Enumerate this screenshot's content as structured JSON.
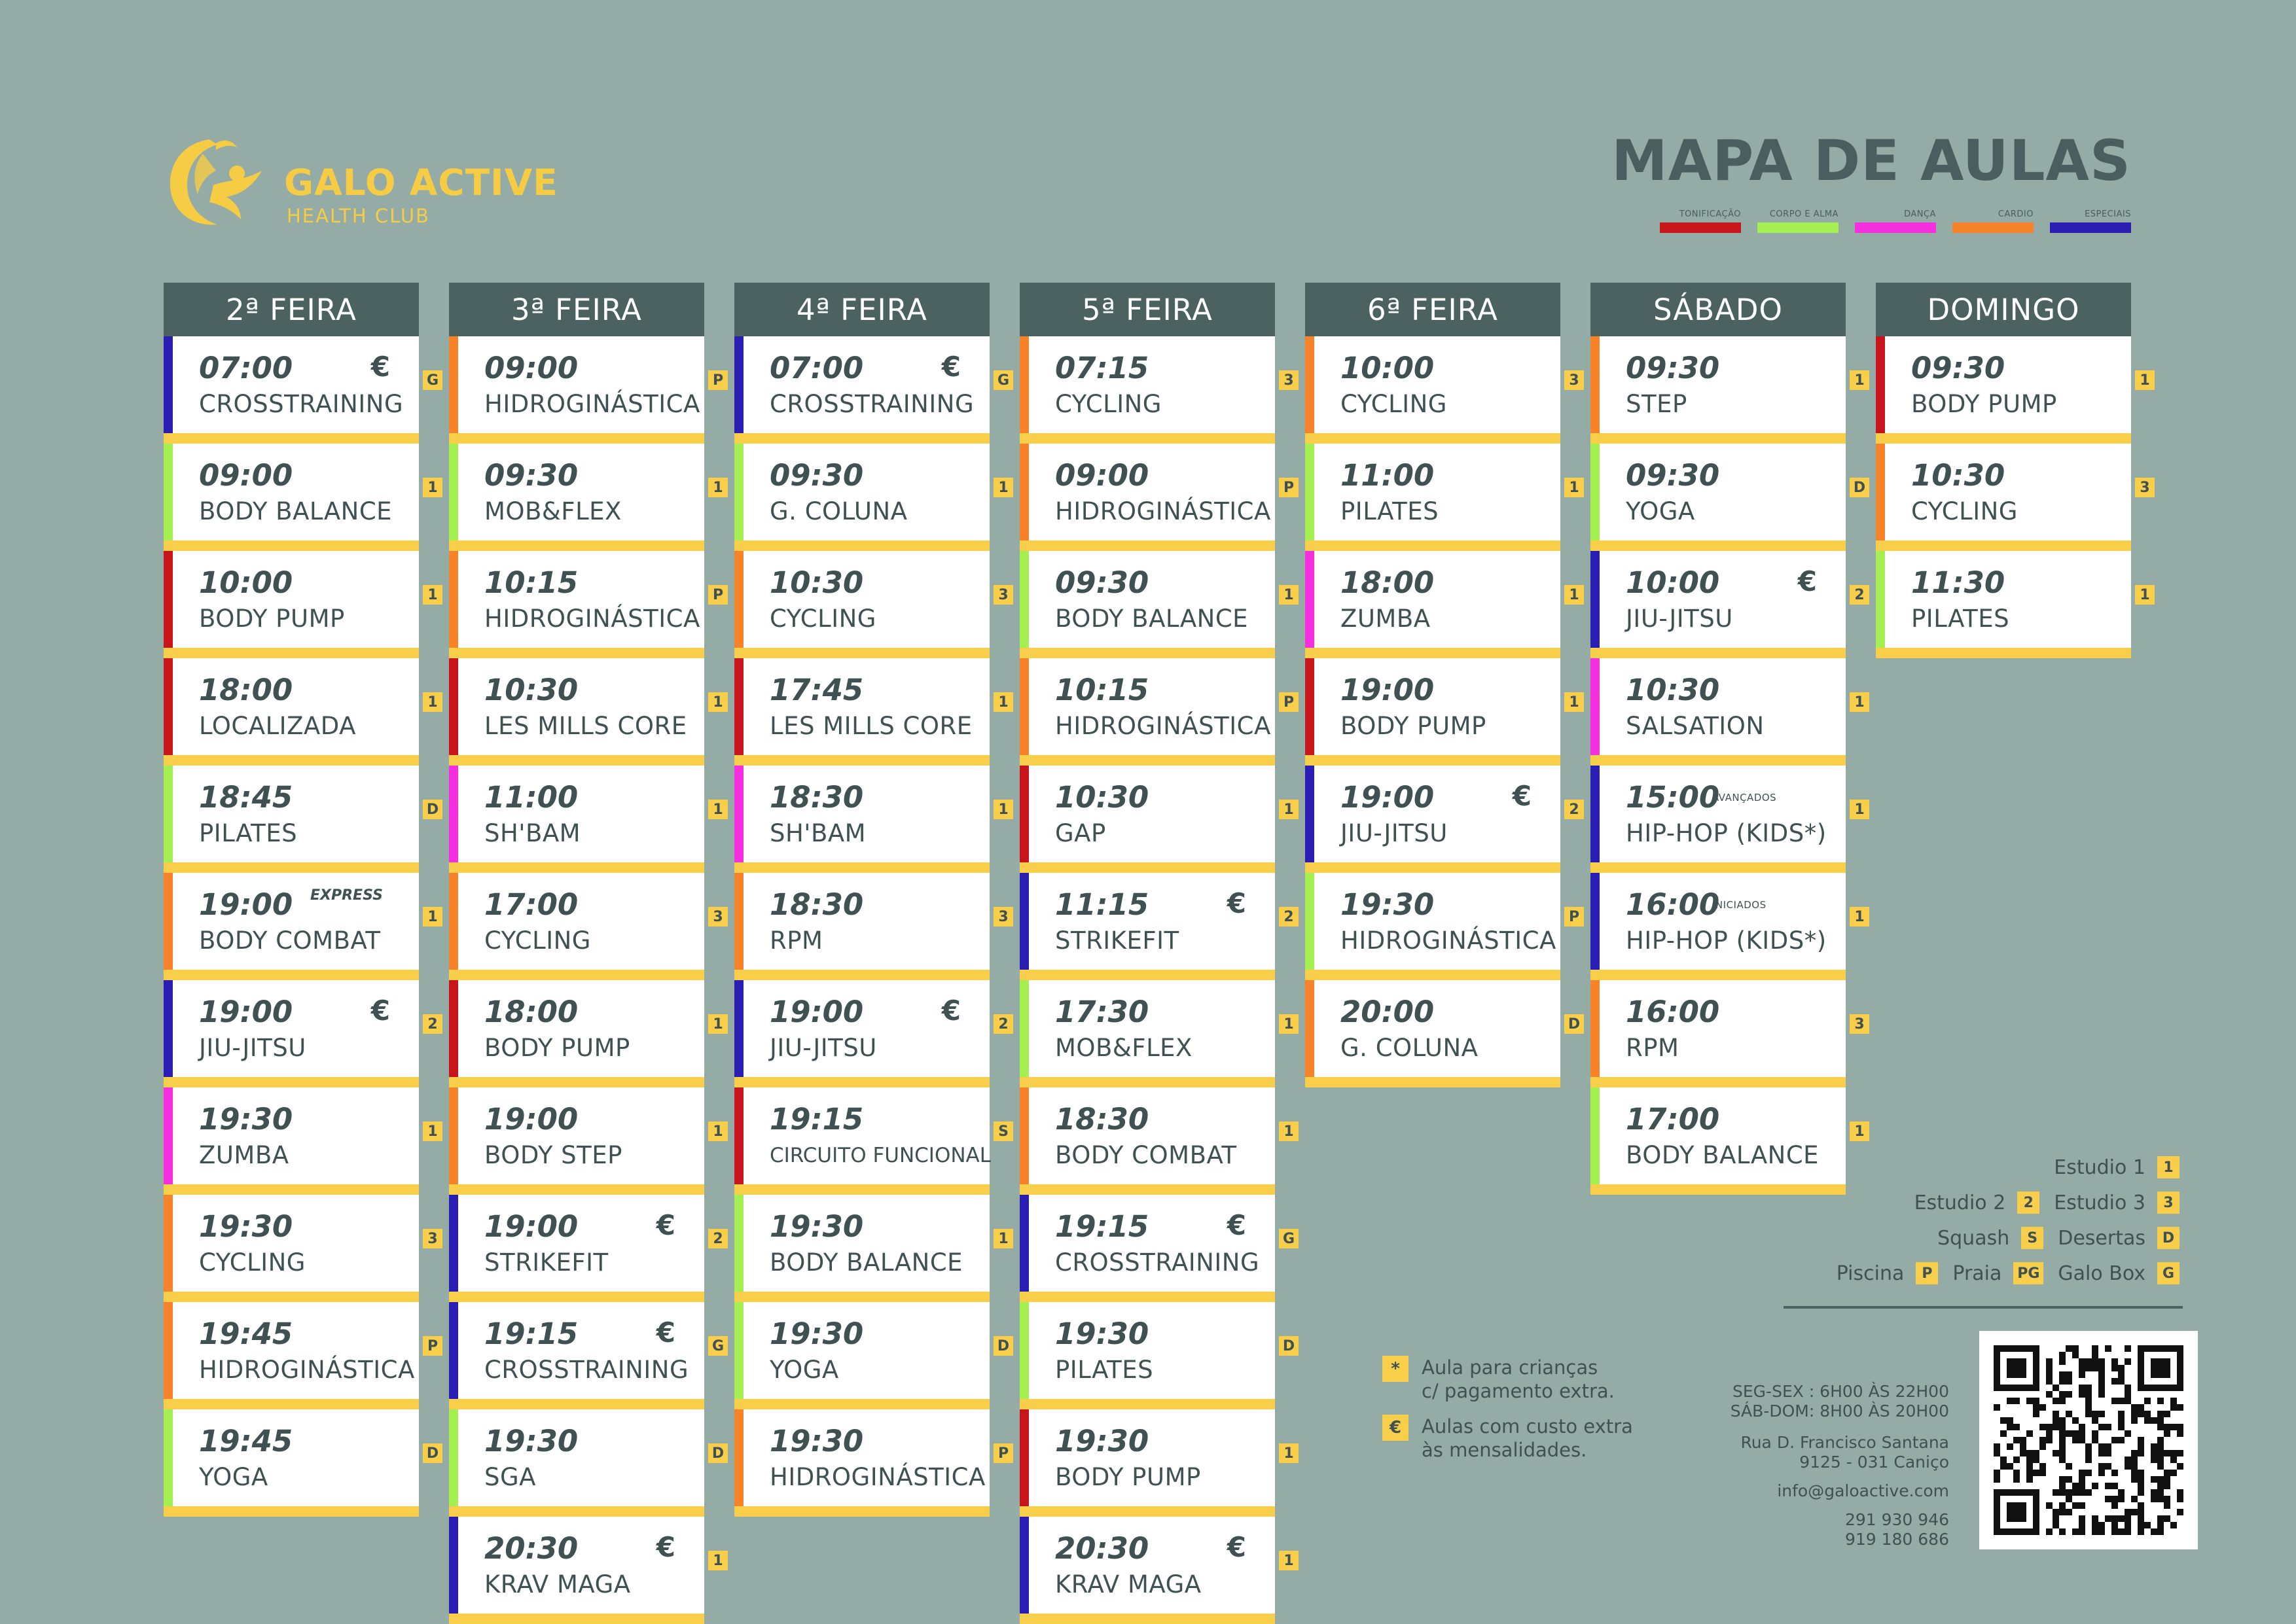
{
  "brand": {
    "name": "GALO ACTIVE",
    "subtitle": "HEALTH CLUB",
    "color": "#f7cc45"
  },
  "title": "MAPA DE AULAS",
  "categories": [
    {
      "label": "TONIFICAÇÃO",
      "color": "#c8151b"
    },
    {
      "label": "CORPO E ALMA",
      "color": "#a6ef52"
    },
    {
      "label": "DANÇA",
      "color": "#f52ee0"
    },
    {
      "label": "CARDIO",
      "color": "#f6822a"
    },
    {
      "label": "ESPECIAIS",
      "color": "#2b1eb3"
    }
  ],
  "days": [
    {
      "name": "2ª FEIRA",
      "classes": [
        {
          "time": "07:00",
          "name": "CROSSTRAINING",
          "studio": "G",
          "euro": "€",
          "cat": 4
        },
        {
          "time": "09:00",
          "name": "BODY BALANCE",
          "studio": "1",
          "cat": 1
        },
        {
          "time": "10:00",
          "name": "BODY PUMP",
          "studio": "1",
          "cat": 0
        },
        {
          "time": "18:00",
          "name": "LOCALIZADA",
          "studio": "1",
          "cat": 0
        },
        {
          "time": "18:45",
          "name": "PILATES",
          "studio": "D",
          "cat": 1
        },
        {
          "time": "19:00",
          "name": "BODY COMBAT",
          "studio": "1",
          "note": "EXPRESS",
          "cat": 3
        },
        {
          "time": "19:00",
          "name": "JIU-JITSU",
          "studio": "2",
          "euro": "€",
          "cat": 4
        },
        {
          "time": "19:30",
          "name": "ZUMBA",
          "studio": "1",
          "cat": 2
        },
        {
          "time": "19:30",
          "name": "CYCLING",
          "studio": "3",
          "cat": 3
        },
        {
          "time": "19:45",
          "name": "HIDROGINÁSTICA",
          "studio": "P",
          "cat": 3
        },
        {
          "time": "19:45",
          "name": "YOGA",
          "studio": "D",
          "cat": 1
        }
      ]
    },
    {
      "name": "3ª FEIRA",
      "classes": [
        {
          "time": "09:00",
          "name": "HIDROGINÁSTICA",
          "studio": "P",
          "cat": 3
        },
        {
          "time": "09:30",
          "name": "MOB&FLEX",
          "studio": "1",
          "cat": 1
        },
        {
          "time": "10:15",
          "name": "HIDROGINÁSTICA",
          "studio": "P",
          "cat": 3
        },
        {
          "time": "10:30",
          "name": "LES MILLS CORE",
          "studio": "1",
          "cat": 0
        },
        {
          "time": "11:00",
          "name": "SH'BAM",
          "studio": "1",
          "cat": 2
        },
        {
          "time": "17:00",
          "name": "CYCLING",
          "studio": "3",
          "cat": 3
        },
        {
          "time": "18:00",
          "name": "BODY PUMP",
          "studio": "1",
          "cat": 0
        },
        {
          "time": "19:00",
          "name": "BODY STEP",
          "studio": "1",
          "cat": 3
        },
        {
          "time": "19:00",
          "name": "STRIKEFIT",
          "studio": "2",
          "euro": "€",
          "cat": 4
        },
        {
          "time": "19:15",
          "name": "CROSSTRAINING",
          "studio": "G",
          "euro": "€",
          "cat": 4
        },
        {
          "time": "19:30",
          "name": "SGA",
          "studio": "D",
          "cat": 1
        },
        {
          "time": "20:30",
          "name": "KRAV MAGA",
          "studio": "1",
          "euro": "€",
          "cat": 4
        }
      ]
    },
    {
      "name": "4ª FEIRA",
      "classes": [
        {
          "time": "07:00",
          "name": "CROSSTRAINING",
          "studio": "G",
          "euro": "€",
          "cat": 4
        },
        {
          "time": "09:30",
          "name": "G. COLUNA",
          "studio": "1",
          "cat": 1
        },
        {
          "time": "10:30",
          "name": "CYCLING",
          "studio": "3",
          "cat": 3
        },
        {
          "time": "17:45",
          "name": "LES MILLS CORE",
          "studio": "1",
          "cat": 0
        },
        {
          "time": "18:30",
          "name": "SH'BAM",
          "studio": "1",
          "cat": 2
        },
        {
          "time": "18:30",
          "name": "RPM",
          "studio": "3",
          "cat": 3
        },
        {
          "time": "19:00",
          "name": "JIU-JITSU",
          "studio": "2",
          "euro": "€",
          "cat": 4
        },
        {
          "time": "19:15",
          "name": "CIRCUITO FUNCIONAL",
          "studio": "S",
          "cat": 0,
          "small": true
        },
        {
          "time": "19:30",
          "name": "BODY BALANCE",
          "studio": "1",
          "cat": 1
        },
        {
          "time": "19:30",
          "name": "YOGA",
          "studio": "D",
          "cat": 1
        },
        {
          "time": "19:30",
          "name": "HIDROGINÁSTICA",
          "studio": "P",
          "cat": 3
        }
      ]
    },
    {
      "name": "5ª FEIRA",
      "classes": [
        {
          "time": "07:15",
          "name": "CYCLING",
          "studio": "3",
          "cat": 3
        },
        {
          "time": "09:00",
          "name": "HIDROGINÁSTICA",
          "studio": "P",
          "cat": 3
        },
        {
          "time": "09:30",
          "name": "BODY BALANCE",
          "studio": "1",
          "cat": 1
        },
        {
          "time": "10:15",
          "name": "HIDROGINÁSTICA",
          "studio": "P",
          "cat": 3
        },
        {
          "time": "10:30",
          "name": "GAP",
          "studio": "1",
          "cat": 0
        },
        {
          "time": "11:15",
          "name": "STRIKEFIT",
          "studio": "2",
          "euro": "€",
          "cat": 4
        },
        {
          "time": "17:30",
          "name": "MOB&FLEX",
          "studio": "1",
          "cat": 1
        },
        {
          "time": "18:30",
          "name": "BODY COMBAT",
          "studio": "1",
          "cat": 3
        },
        {
          "time": "19:15",
          "name": "CROSSTRAINING",
          "studio": "G",
          "euro": "€",
          "cat": 4
        },
        {
          "time": "19:30",
          "name": "PILATES",
          "studio": "D",
          "cat": 1
        },
        {
          "time": "19:30",
          "name": "BODY PUMP",
          "studio": "1",
          "cat": 0
        },
        {
          "time": "20:30",
          "name": "KRAV MAGA",
          "studio": "1",
          "euro": "€",
          "cat": 4
        }
      ]
    },
    {
      "name": "6ª FEIRA",
      "classes": [
        {
          "time": "10:00",
          "name": "CYCLING",
          "studio": "3",
          "cat": 3
        },
        {
          "time": "11:00",
          "name": "PILATES",
          "studio": "1",
          "cat": 1
        },
        {
          "time": "18:00",
          "name": "ZUMBA",
          "studio": "1",
          "cat": 2
        },
        {
          "time": "19:00",
          "name": "BODY PUMP",
          "studio": "1",
          "cat": 0
        },
        {
          "time": "19:00",
          "name": "JIU-JITSU",
          "studio": "2",
          "euro": "€",
          "cat": 4
        },
        {
          "time": "19:30",
          "name": "HIDROGINÁSTICA",
          "studio": "P",
          "cat": 1
        },
        {
          "time": "20:00",
          "name": "G. COLUNA",
          "studio": "D",
          "cat": 3
        }
      ]
    },
    {
      "name": "SÁBADO",
      "classes": [
        {
          "time": "09:30",
          "name": "STEP",
          "studio": "1",
          "cat": 3
        },
        {
          "time": "09:30",
          "name": "YOGA",
          "studio": "D",
          "cat": 1
        },
        {
          "time": "10:00",
          "name": "JIU-JITSU",
          "studio": "2",
          "euro": "€",
          "cat": 4
        },
        {
          "time": "10:30",
          "name": "SALSATION",
          "studio": "1",
          "cat": 2
        },
        {
          "time": "15:00",
          "name": "HIP-HOP (KIDS*)",
          "studio": "1",
          "note": "AVANÇADOS",
          "noteSmall": true,
          "cat": 4
        },
        {
          "time": "16:00",
          "name": "HIP-HOP (KIDS*)",
          "studio": "1",
          "note": "INICIADOS",
          "noteSmall": true,
          "cat": 4
        },
        {
          "time": "16:00",
          "name": "RPM",
          "studio": "3",
          "cat": 3
        },
        {
          "time": "17:00",
          "name": "BODY BALANCE",
          "studio": "1",
          "cat": 1
        }
      ]
    },
    {
      "name": "DOMINGO",
      "classes": [
        {
          "time": "09:30",
          "name": "BODY PUMP",
          "studio": "1",
          "cat": 0
        },
        {
          "time": "10:30",
          "name": "CYCLING",
          "studio": "3",
          "cat": 3
        },
        {
          "time": "11:30",
          "name": "PILATES",
          "studio": "1",
          "cat": 1
        }
      ]
    }
  ],
  "studio_legend": [
    [
      {
        "label": "Estudio 1",
        "code": "1"
      }
    ],
    [
      {
        "label": "Estudio 2",
        "code": "2"
      },
      {
        "label": "Estudio 3",
        "code": "3"
      }
    ],
    [
      {
        "label": "Squash",
        "code": "S"
      },
      {
        "label": "Desertas",
        "code": "D"
      }
    ],
    [
      {
        "label": "Piscina",
        "code": "P"
      },
      {
        "label": "Praia",
        "code": "PG"
      },
      {
        "label": "Galo Box",
        "code": "G"
      }
    ]
  ],
  "notes": [
    {
      "symbol": "*",
      "line1": "Aula para crianças",
      "line2": "c/ pagamento extra."
    },
    {
      "symbol": "€",
      "line1": "Aulas com custo extra",
      "line2": "às mensalidades."
    }
  ],
  "contact": {
    "hours1": "SEG-SEX : 6H00 ÀS 22H00",
    "hours2": "SÁB-DOM: 8H00 ÀS 20H00",
    "address1": "Rua D. Francisco Santana",
    "address2": "9125 - 031 Caniço",
    "email": "info@galoactive.com",
    "phone1": "291 930 946",
    "phone2": "919 180 686"
  },
  "colors": {
    "background": "#95aba5",
    "header": "#4b6261",
    "accent": "#f8ce4a",
    "text": "#3f5152"
  }
}
